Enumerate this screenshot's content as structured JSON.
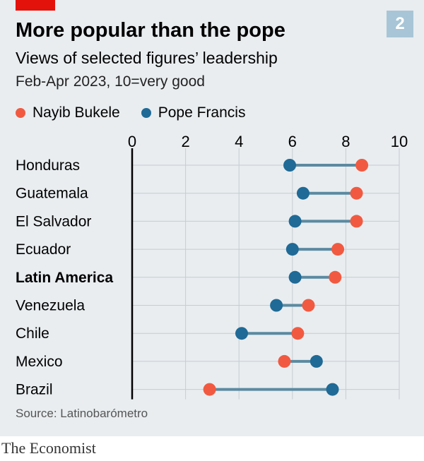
{
  "badge": "2",
  "title": "More popular than the pope",
  "subtitle": "Views of selected figures’ leadership",
  "note": "Feb-Apr 2023, 10=very good",
  "source": "Source: Latinobarómetro",
  "brand": "The Economist",
  "colors": {
    "bukele": "#f15a40",
    "francis": "#1f6a96",
    "connector": "#5b8aa1",
    "grid": "#c6ccd1",
    "axis": "#000000",
    "accent_red": "#e3120b",
    "panel_bg": "#e9edf0"
  },
  "chart_data": {
    "type": "dumbbell",
    "xlim": [
      0,
      10
    ],
    "xticks": [
      0,
      2,
      4,
      6,
      8,
      10
    ],
    "grid": true,
    "legend_position": "top-left",
    "categories": [
      "Honduras",
      "Guatemala",
      "El Salvador",
      "Ecuador",
      "Latin America",
      "Venezuela",
      "Chile",
      "Mexico",
      "Brazil"
    ],
    "bold_categories": [
      "Latin America"
    ],
    "series": [
      {
        "name": "Nayib Bukele",
        "color": "#f15a40",
        "values": [
          8.6,
          8.4,
          8.4,
          7.7,
          7.6,
          6.6,
          6.2,
          5.7,
          2.9
        ]
      },
      {
        "name": "Pope Francis",
        "color": "#1f6a96",
        "values": [
          5.9,
          6.4,
          6.1,
          6.0,
          6.1,
          5.4,
          4.1,
          6.9,
          7.5
        ]
      }
    ]
  }
}
